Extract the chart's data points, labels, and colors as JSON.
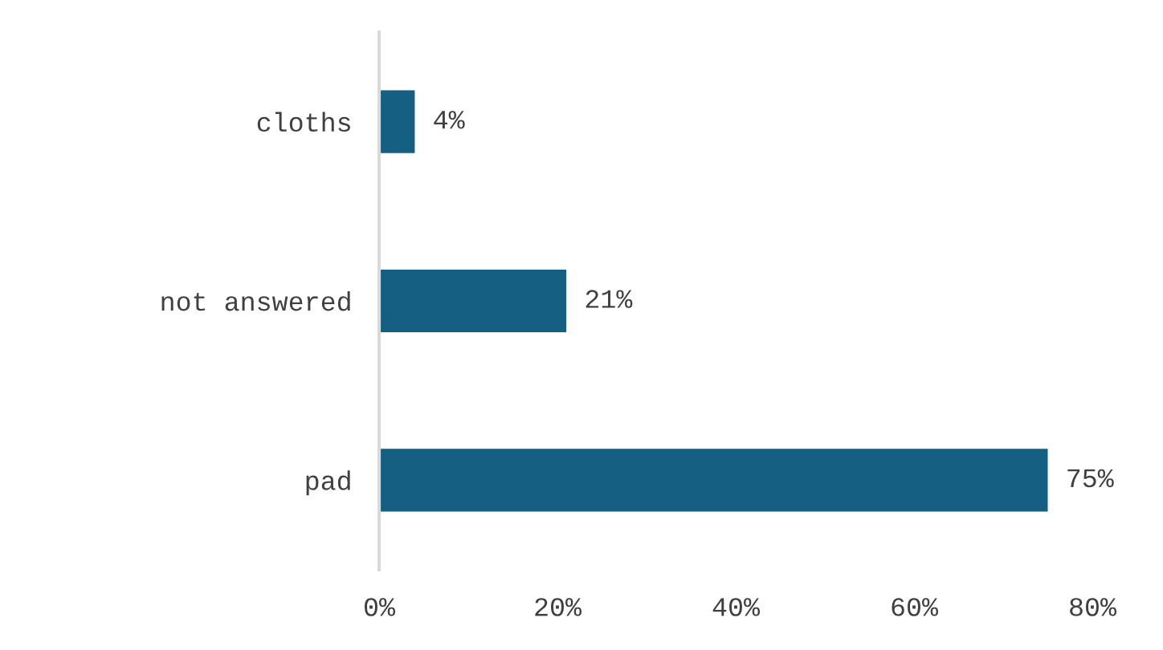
{
  "chart_data": {
    "type": "bar",
    "orientation": "horizontal",
    "categories": [
      "cloths",
      "not answered",
      "pad"
    ],
    "values": [
      4,
      21,
      75
    ],
    "color": "#155f82",
    "value_labels": [
      "4%",
      "21%",
      "75%"
    ],
    "xlim": [
      0,
      80
    ],
    "xticks": [
      {
        "value": 0,
        "label": "0%"
      },
      {
        "value": 20,
        "label": "20%"
      },
      {
        "value": 40,
        "label": "40%"
      },
      {
        "value": 60,
        "label": "60%"
      },
      {
        "value": 80,
        "label": "80%"
      }
    ],
    "grid": false
  }
}
